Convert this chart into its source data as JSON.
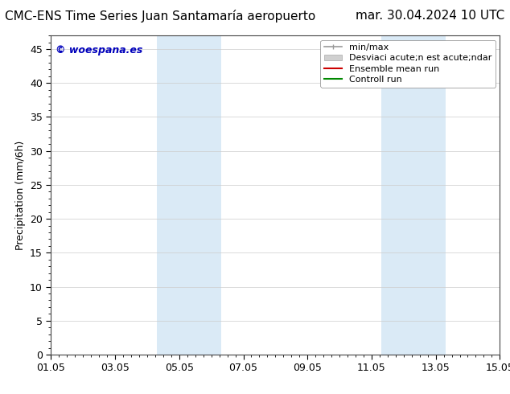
{
  "title_left": "CMC-ENS Time Series Juan Santamaría aeropuerto",
  "title_right": "mar. 30.04.2024 10 UTC",
  "ylabel": "Precipitation (mm/6h)",
  "ylim": [
    0,
    47
  ],
  "yticks": [
    0,
    5,
    10,
    15,
    20,
    25,
    30,
    35,
    40,
    45
  ],
  "xtick_labels": [
    "01.05",
    "03.05",
    "05.05",
    "07.05",
    "09.05",
    "11.05",
    "13.05",
    "15.05"
  ],
  "xtick_positions": [
    0,
    2,
    4,
    6,
    8,
    10,
    12,
    14
  ],
  "x_total_days": 14,
  "shaded_regions": [
    {
      "xmin": 3.3,
      "xmax": 5.3,
      "color": "#daeaf6",
      "alpha": 1.0
    },
    {
      "xmin": 10.3,
      "xmax": 12.3,
      "color": "#daeaf6",
      "alpha": 1.0
    }
  ],
  "watermark_text": "© woespana.es",
  "watermark_color": "#0000bb",
  "legend_labels": [
    "min/max",
    "Desviaci acute;n est acute;ndar",
    "Ensemble mean run",
    "Controll run"
  ],
  "legend_colors": [
    "#aaaaaa",
    "#cccccc",
    "#cc0000",
    "#008800"
  ],
  "background_color": "#ffffff",
  "title_fontsize": 11,
  "axis_fontsize": 9,
  "tick_fontsize": 9,
  "legend_fontsize": 8
}
